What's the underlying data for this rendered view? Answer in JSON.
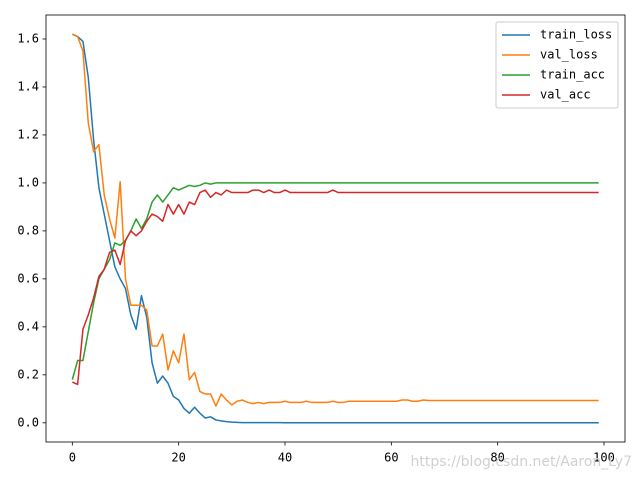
{
  "chart_data": {
    "type": "line",
    "x": [
      0,
      1,
      2,
      3,
      4,
      5,
      6,
      7,
      8,
      9,
      10,
      11,
      12,
      13,
      14,
      15,
      16,
      17,
      18,
      19,
      20,
      21,
      22,
      23,
      24,
      25,
      26,
      27,
      28,
      29,
      30,
      31,
      32,
      33,
      34,
      35,
      36,
      37,
      38,
      39,
      40,
      41,
      42,
      43,
      44,
      45,
      46,
      47,
      48,
      49,
      50,
      51,
      52,
      53,
      54,
      55,
      56,
      57,
      58,
      59,
      60,
      61,
      62,
      63,
      64,
      65,
      66,
      67,
      68,
      69,
      70,
      71,
      72,
      73,
      74,
      75,
      76,
      77,
      78,
      79,
      80,
      81,
      82,
      83,
      84,
      85,
      86,
      87,
      88,
      89,
      90,
      91,
      92,
      93,
      94,
      95,
      96,
      97,
      98,
      99
    ],
    "series": [
      {
        "name": "train_loss",
        "color": "#1f77b4",
        "values": [
          1.62,
          1.61,
          1.59,
          1.44,
          1.18,
          0.98,
          0.87,
          0.76,
          0.65,
          0.6,
          0.56,
          0.45,
          0.39,
          0.53,
          0.44,
          0.25,
          0.165,
          0.195,
          0.165,
          0.11,
          0.095,
          0.06,
          0.04,
          0.065,
          0.04,
          0.02,
          0.025,
          0.012,
          0.008,
          0.005,
          0.003,
          0.002,
          0.001,
          0.001,
          0.001,
          0.001,
          0.001,
          0.001,
          0.001,
          0.001,
          0,
          0,
          0,
          0,
          0,
          0,
          0,
          0,
          0,
          0,
          0,
          0,
          0,
          0,
          0,
          0,
          0,
          0,
          0,
          0,
          0,
          0,
          0,
          0,
          0,
          0,
          0,
          0,
          0,
          0,
          0,
          0,
          0,
          0,
          0,
          0,
          0,
          0,
          0,
          0,
          0,
          0,
          0,
          0,
          0,
          0,
          0,
          0,
          0,
          0,
          0,
          0,
          0,
          0,
          0,
          0,
          0,
          0,
          0,
          0
        ]
      },
      {
        "name": "val_loss",
        "color": "#ff7f0e",
        "values": [
          1.62,
          1.61,
          1.55,
          1.25,
          1.13,
          1.16,
          0.95,
          0.85,
          0.77,
          1.005,
          0.6,
          0.49,
          0.49,
          0.49,
          0.47,
          0.32,
          0.32,
          0.37,
          0.22,
          0.3,
          0.25,
          0.37,
          0.18,
          0.21,
          0.13,
          0.12,
          0.12,
          0.07,
          0.12,
          0.095,
          0.075,
          0.09,
          0.095,
          0.085,
          0.08,
          0.085,
          0.08,
          0.085,
          0.085,
          0.085,
          0.09,
          0.085,
          0.085,
          0.085,
          0.09,
          0.085,
          0.085,
          0.085,
          0.085,
          0.09,
          0.085,
          0.085,
          0.09,
          0.09,
          0.09,
          0.09,
          0.09,
          0.09,
          0.09,
          0.09,
          0.09,
          0.09,
          0.095,
          0.095,
          0.09,
          0.09,
          0.095,
          0.093,
          0.093,
          0.093,
          0.093,
          0.093,
          0.093,
          0.093,
          0.093,
          0.093,
          0.093,
          0.093,
          0.093,
          0.093,
          0.093,
          0.093,
          0.093,
          0.093,
          0.093,
          0.093,
          0.093,
          0.093,
          0.093,
          0.093,
          0.093,
          0.093,
          0.093,
          0.093,
          0.093,
          0.093,
          0.093,
          0.093,
          0.093,
          0.093
        ]
      },
      {
        "name": "train_acc",
        "color": "#2ca02c",
        "values": [
          0.18,
          0.26,
          0.26,
          0.38,
          0.5,
          0.6,
          0.64,
          0.68,
          0.75,
          0.74,
          0.76,
          0.8,
          0.85,
          0.81,
          0.85,
          0.92,
          0.95,
          0.92,
          0.95,
          0.98,
          0.97,
          0.98,
          0.99,
          0.985,
          0.99,
          1.0,
          0.995,
          1.0,
          1.0,
          1.0,
          1.0,
          1.0,
          1.0,
          1.0,
          1.0,
          1.0,
          1.0,
          1.0,
          1.0,
          1.0,
          1.0,
          1.0,
          1.0,
          1.0,
          1.0,
          1.0,
          1.0,
          1.0,
          1.0,
          1.0,
          1.0,
          1.0,
          1.0,
          1.0,
          1.0,
          1.0,
          1.0,
          1.0,
          1.0,
          1.0,
          1.0,
          1.0,
          1.0,
          1.0,
          1.0,
          1.0,
          1.0,
          1.0,
          1.0,
          1.0,
          1.0,
          1.0,
          1.0,
          1.0,
          1.0,
          1.0,
          1.0,
          1.0,
          1.0,
          1.0,
          1.0,
          1.0,
          1.0,
          1.0,
          1.0,
          1.0,
          1.0,
          1.0,
          1.0,
          1.0,
          1.0,
          1.0,
          1.0,
          1.0,
          1.0,
          1.0,
          1.0,
          1.0,
          1.0,
          1.0
        ]
      },
      {
        "name": "val_acc",
        "color": "#d62728",
        "values": [
          0.17,
          0.16,
          0.39,
          0.45,
          0.52,
          0.61,
          0.64,
          0.71,
          0.72,
          0.66,
          0.76,
          0.8,
          0.78,
          0.8,
          0.84,
          0.87,
          0.86,
          0.84,
          0.91,
          0.87,
          0.91,
          0.87,
          0.92,
          0.91,
          0.96,
          0.97,
          0.94,
          0.96,
          0.95,
          0.97,
          0.96,
          0.96,
          0.96,
          0.96,
          0.97,
          0.97,
          0.96,
          0.97,
          0.96,
          0.96,
          0.97,
          0.96,
          0.96,
          0.96,
          0.96,
          0.96,
          0.96,
          0.96,
          0.96,
          0.97,
          0.96,
          0.96,
          0.96,
          0.96,
          0.96,
          0.96,
          0.96,
          0.96,
          0.96,
          0.96,
          0.96,
          0.96,
          0.96,
          0.96,
          0.96,
          0.96,
          0.96,
          0.96,
          0.96,
          0.96,
          0.96,
          0.96,
          0.96,
          0.96,
          0.96,
          0.96,
          0.96,
          0.96,
          0.96,
          0.96,
          0.96,
          0.96,
          0.96,
          0.96,
          0.96,
          0.96,
          0.96,
          0.96,
          0.96,
          0.96,
          0.96,
          0.96,
          0.96,
          0.96,
          0.96,
          0.96,
          0.96,
          0.96,
          0.96,
          0.96
        ]
      }
    ],
    "xlim": [
      -4.95,
      103.95
    ],
    "xticks": [
      0,
      20,
      40,
      60,
      80,
      100
    ],
    "ylim": [
      -0.08,
      1.7
    ],
    "yticks": [
      {
        "value": 0,
        "label": "0.0"
      },
      0.2,
      0.4,
      0.6,
      0.8,
      {
        "value": 1.0,
        "label": "1.0"
      },
      1.2,
      1.4,
      1.6
    ],
    "legend": "upper right",
    "grid": false,
    "watermark": "https://blog.csdn.net/Aaron_Ly7"
  }
}
